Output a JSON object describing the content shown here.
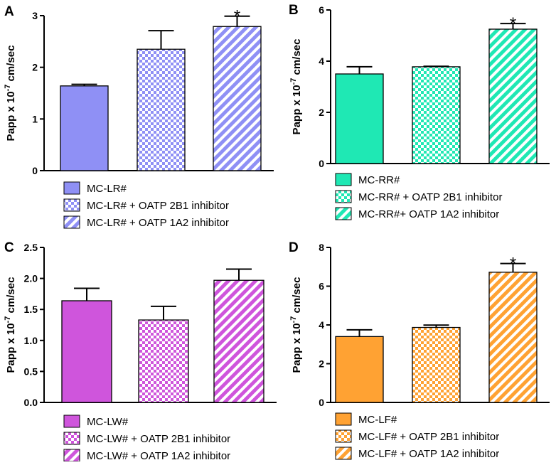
{
  "figure": {
    "panels": [
      {
        "letter": "A",
        "ylabel": "Papp x 10",
        "yexp": "-7",
        "yunit": " cm/sec"
      },
      {
        "letter": "B",
        "ylabel": "Papp x 10",
        "yexp": "-7",
        "yunit": " cm/sec"
      },
      {
        "letter": "C",
        "ylabel": "Papp x 10",
        "yexp": "-7",
        "yunit": " cm/sec"
      },
      {
        "letter": "D",
        "ylabel": "Papp x 10",
        "yexp": "-7",
        "yunit": " cm/sec"
      }
    ]
  },
  "chart_data": [
    {
      "type": "bar",
      "panel": "A",
      "title": "",
      "xlabel": "",
      "ylabel": "Papp x 10-7 cm/sec",
      "ylim": [
        0,
        3
      ],
      "yticks": [
        0,
        1,
        2,
        3
      ],
      "ytick_labels": [
        "0",
        "1",
        "2",
        "3"
      ],
      "color": "#8f90f5",
      "categories": [
        "MC-LR#",
        "MC-LR# + OATP 2B1 inhibitor",
        "MC-LR# + OATP 1A2 inhibitor"
      ],
      "values": [
        1.64,
        2.35,
        2.79
      ],
      "errors": [
        0.03,
        0.36,
        0.2
      ],
      "patterns": [
        "solid",
        "checker",
        "diagonal"
      ],
      "significance": [
        "",
        "",
        "*"
      ],
      "legend": [
        "MC-LR#",
        "MC-LR# + OATP 2B1 inhibitor",
        "MC-LR# + OATP 1A2 inhibitor"
      ]
    },
    {
      "type": "bar",
      "panel": "B",
      "title": "",
      "xlabel": "",
      "ylabel": "Papp x 10-7 cm/sec",
      "ylim": [
        0,
        6
      ],
      "yticks": [
        0,
        2,
        4,
        6
      ],
      "ytick_labels": [
        "0",
        "2",
        "4",
        "6"
      ],
      "color": "#1fe8b4",
      "categories": [
        "MC-RR#",
        "MC-RR# + OATP 2B1 inhibitor",
        "MC-RR#+ OATP 1A2 inhibitor"
      ],
      "values": [
        3.5,
        3.78,
        5.25
      ],
      "errors": [
        0.28,
        0.02,
        0.22
      ],
      "patterns": [
        "solid",
        "checker",
        "diagonal"
      ],
      "significance": [
        "",
        "",
        "*"
      ],
      "legend": [
        "MC-RR#",
        "MC-RR# + OATP 2B1 inhibitor",
        "MC-RR#+ OATP 1A2 inhibitor"
      ]
    },
    {
      "type": "bar",
      "panel": "C",
      "title": "",
      "xlabel": "",
      "ylabel": "Papp x 10-7 cm/sec",
      "ylim": [
        0,
        2.5
      ],
      "yticks": [
        0,
        0.5,
        1,
        1.5,
        2,
        2.5
      ],
      "ytick_labels": [
        "0.0",
        "0.5",
        "1.0",
        "1.5",
        "2.0",
        "2.5"
      ],
      "color": "#cf55dc",
      "categories": [
        "MC-LW#",
        "MC-LW# + OATP 2B1 inhibitor",
        "MC-LW# + OATP 1A2 inhibitor"
      ],
      "values": [
        1.64,
        1.33,
        1.97
      ],
      "errors": [
        0.2,
        0.22,
        0.18
      ],
      "patterns": [
        "solid",
        "checker",
        "diagonal"
      ],
      "significance": [
        "",
        "",
        ""
      ],
      "legend": [
        "MC-LW#",
        "MC-LW# + OATP 2B1 inhibitor",
        "MC-LW# + OATP 1A2 inhibitor"
      ]
    },
    {
      "type": "bar",
      "panel": "D",
      "title": "",
      "xlabel": "",
      "ylabel": "Papp x 10-7 cm/sec",
      "ylim": [
        0,
        8
      ],
      "yticks": [
        0,
        2,
        4,
        6,
        8
      ],
      "ytick_labels": [
        "0",
        "2",
        "4",
        "6",
        "8"
      ],
      "color": "#ffa233",
      "categories": [
        "MC-LF#",
        "MC-LF# + OATP 2B1 inhibitor",
        "MC-LF# + OATP 1A2 inhibitor"
      ],
      "values": [
        3.4,
        3.87,
        6.72
      ],
      "errors": [
        0.35,
        0.12,
        0.45
      ],
      "patterns": [
        "solid",
        "checker",
        "diagonal"
      ],
      "significance": [
        "",
        "",
        "*"
      ],
      "legend": [
        "MC-LF#",
        "MC-LF# + OATP 2B1 inhibitor",
        "MC-LF# + OATP 1A2 inhibitor"
      ]
    }
  ]
}
